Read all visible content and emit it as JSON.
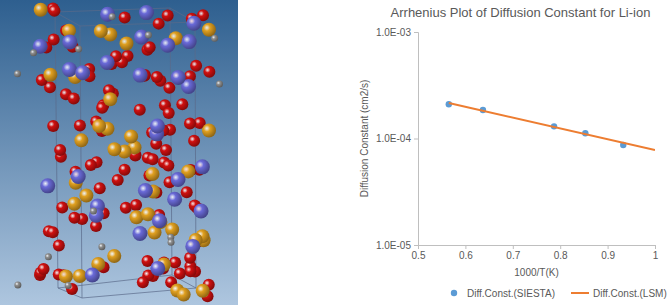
{
  "chart_data": {
    "type": "scatter",
    "title": "Arrhenius Plot of Diffusion Constant for Li-ion",
    "x_label": "1000/T(K)",
    "y_label": "Diffusion Constant (cm2/s)",
    "xlim": [
      0.5,
      1
    ],
    "xticks": [
      0.5,
      0.6,
      0.7,
      0.8,
      0.9,
      1
    ],
    "ylim": [
      1e-05,
      0.001
    ],
    "yticks": [
      {
        "value": 1e-05,
        "label": "1.0E-05"
      },
      {
        "value": 0.0001,
        "label": "1.0E-04"
      },
      {
        "value": 0.001,
        "label": "1.0E-03"
      }
    ],
    "log": "y",
    "grid": false,
    "legend": "bottom",
    "series": [
      {
        "name": "Diff.Const.(SIESTA)",
        "type": "scatter",
        "marker": "circle",
        "color": "#5b9bd5",
        "x": [
          0.565,
          0.637,
          0.787,
          0.853,
          0.933
        ],
        "values": [
          0.00021,
          0.000185,
          0.00013,
          0.000112,
          8.7e-05
        ]
      },
      {
        "name": "Diff.Const.(LSM)",
        "type": "line",
        "line_style": "solid",
        "color": "#ed7d31",
        "x": [
          0.565,
          1
        ],
        "values": [
          0.000215,
          7.8e-05
        ]
      }
    ]
  }
}
